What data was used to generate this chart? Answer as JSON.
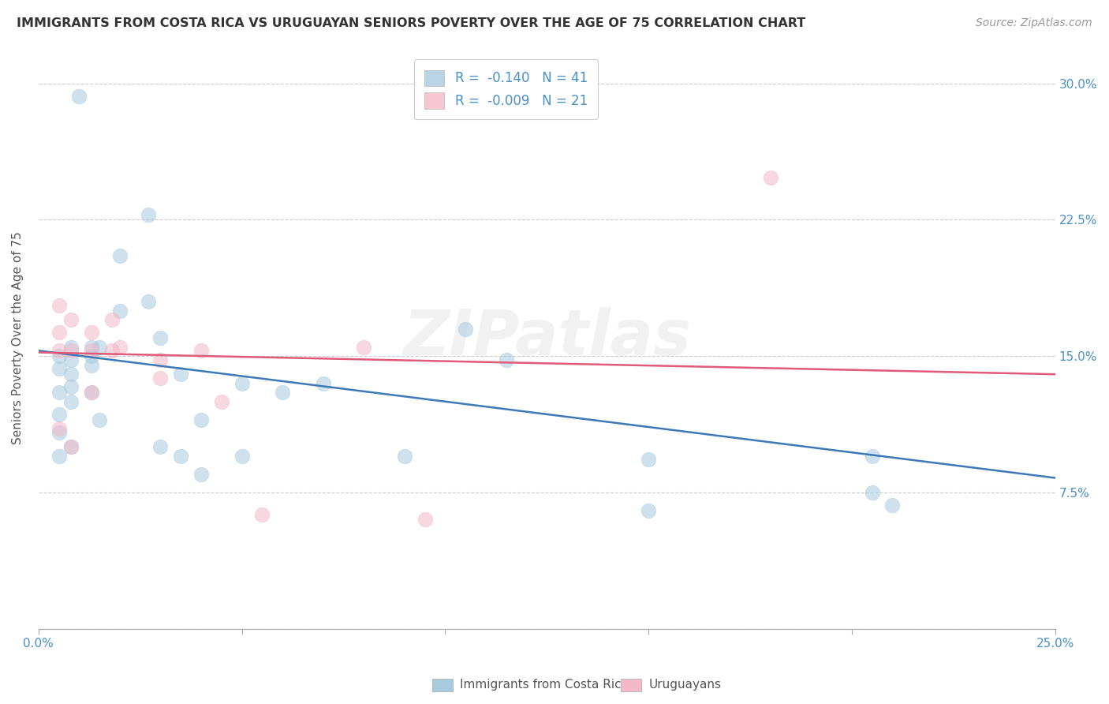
{
  "title": "IMMIGRANTS FROM COSTA RICA VS URUGUAYAN SENIORS POVERTY OVER THE AGE OF 75 CORRELATION CHART",
  "source": "Source: ZipAtlas.com",
  "ylabel": "Seniors Poverty Over the Age of 75",
  "x_min": 0.0,
  "x_max": 0.25,
  "y_min": 0.0,
  "y_max": 0.32,
  "x_ticks": [
    0.0,
    0.05,
    0.1,
    0.15,
    0.2,
    0.25
  ],
  "y_ticks": [
    0.0,
    0.075,
    0.15,
    0.225,
    0.3
  ],
  "y_tick_labels_right": [
    "",
    "7.5%",
    "15.0%",
    "22.5%",
    "30.0%"
  ],
  "legend_r1": "R =  -0.140   N = 41",
  "legend_r2": "R =  -0.009   N = 21",
  "color_blue": "#a8cadf",
  "color_pink": "#f4b8c8",
  "line_color_blue": "#3d7ab5",
  "line_color_pink": "#e05a7a",
  "watermark": "ZIPatlas",
  "blue_scatter_x": [
    0.01,
    0.027,
    0.02,
    0.02,
    0.027,
    0.015,
    0.015,
    0.013,
    0.013,
    0.013,
    0.013,
    0.008,
    0.008,
    0.008,
    0.008,
    0.008,
    0.008,
    0.005,
    0.005,
    0.005,
    0.005,
    0.005,
    0.005,
    0.03,
    0.03,
    0.035,
    0.035,
    0.04,
    0.04,
    0.05,
    0.05,
    0.06,
    0.07,
    0.09,
    0.105,
    0.115,
    0.15,
    0.15,
    0.205,
    0.205,
    0.21
  ],
  "blue_scatter_y": [
    0.293,
    0.228,
    0.175,
    0.205,
    0.18,
    0.155,
    0.115,
    0.155,
    0.15,
    0.145,
    0.13,
    0.155,
    0.148,
    0.14,
    0.133,
    0.125,
    0.1,
    0.15,
    0.143,
    0.13,
    0.118,
    0.108,
    0.095,
    0.16,
    0.1,
    0.14,
    0.095,
    0.115,
    0.085,
    0.135,
    0.095,
    0.13,
    0.135,
    0.095,
    0.165,
    0.148,
    0.093,
    0.065,
    0.095,
    0.075,
    0.068
  ],
  "pink_scatter_x": [
    0.005,
    0.005,
    0.005,
    0.005,
    0.008,
    0.008,
    0.008,
    0.013,
    0.013,
    0.013,
    0.018,
    0.018,
    0.02,
    0.03,
    0.03,
    0.04,
    0.045,
    0.055,
    0.08,
    0.095,
    0.18
  ],
  "pink_scatter_y": [
    0.178,
    0.163,
    0.153,
    0.11,
    0.17,
    0.153,
    0.1,
    0.163,
    0.153,
    0.13,
    0.17,
    0.153,
    0.155,
    0.148,
    0.138,
    0.153,
    0.125,
    0.063,
    0.155,
    0.06,
    0.248
  ],
  "blue_line_x": [
    0.0,
    0.25
  ],
  "blue_line_y": [
    0.153,
    0.083
  ],
  "pink_line_x": [
    0.0,
    0.25
  ],
  "pink_line_y": [
    0.152,
    0.14
  ],
  "grid_color": "#cccccc",
  "bg_color": "#ffffff"
}
